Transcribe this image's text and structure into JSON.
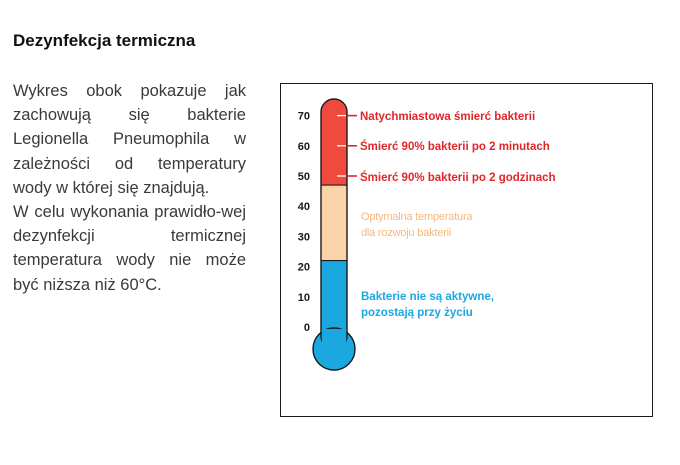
{
  "heading": "Dezynfekcja termiczna",
  "description": {
    "paragraph1": "Wykres obok pokazuje jak zachowują się bakterie Legionella Pneumophila w zależności od temperatury wody w której się znajdują.",
    "paragraph2": "W celu wykonania prawidło-wej dezynfekcji termicznej temperatura wody nie może być niższa niż  60°C."
  },
  "thermometer": {
    "scale_ticks": [
      "70",
      "60",
      "50",
      "40",
      "30",
      "20",
      "10",
      "0"
    ],
    "zones": [
      {
        "name": "red",
        "from": 47,
        "to": 75,
        "color": "#f04a3e"
      },
      {
        "name": "peach",
        "from": 22,
        "to": 47,
        "color": "#fbd3a8"
      },
      {
        "name": "blue",
        "from": -5,
        "to": 22,
        "color": "#1ba8e0"
      }
    ],
    "markers": [
      {
        "value": 70,
        "label": "Natychmiastowa śmierć bakterii"
      },
      {
        "value": 60,
        "label": "Śmierć 90% bakterii po 2 minutach"
      },
      {
        "value": 50,
        "label": "Śmierć 90% bakterii po 2 godzinach"
      }
    ],
    "label_optimal_line1": "Optymalna temperatura",
    "label_optimal_line2": "dla rozwoju bakterii",
    "label_inactive_line1": "Bakterie nie są aktywne,",
    "label_inactive_line2": "pozostają przy życiu",
    "colors": {
      "red": "#e0262b",
      "peach": "#f6b77a",
      "blue": "#1ba8e0",
      "outline": "#1a1a1a"
    }
  }
}
